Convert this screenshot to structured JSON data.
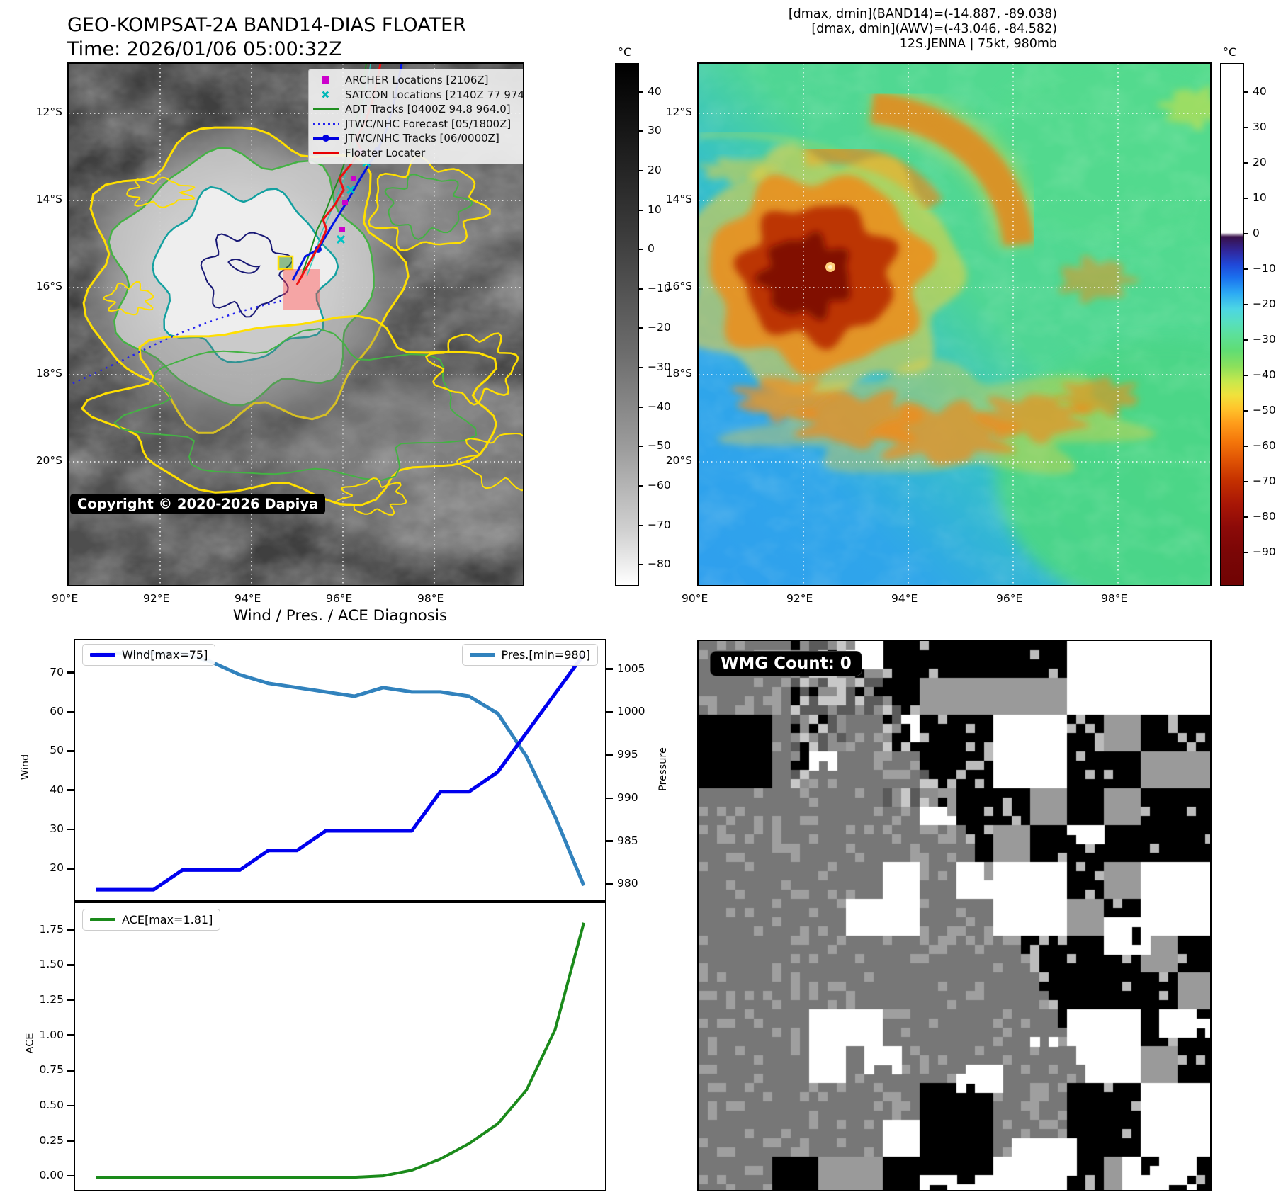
{
  "header": {
    "title": "GEO-KOMPSAT-2A BAND14-DIAS FLOATER",
    "time": "Time: 2026/01/06 05:00:32Z",
    "dminmax_band14": "[dmax, dmin](BAND14)=(-14.887, -89.038)",
    "dminmax_awv": "[dmax, dmin](AWV)=(-43.046, -84.582)",
    "storm_info": "12S.JENNA | 75kt, 980mb"
  },
  "band14_map": {
    "legend": [
      {
        "label": "ARCHER Locations [2106Z]",
        "marker": "magenta-square",
        "color": "#cc00cc"
      },
      {
        "label": "SATCON Locations [2140Z 77 974]",
        "marker": "cyan-x",
        "color": "#00b8b8"
      },
      {
        "label": "ADT Tracks [0400Z 94.8 964.0]",
        "marker": "green-line",
        "color": "#1f8f1f"
      },
      {
        "label": "JTWC/NHC Forecast [05/1800Z]",
        "marker": "blue-dotted-line",
        "color": "#2222ee"
      },
      {
        "label": "JTWC/NHC Tracks [06/0000Z]",
        "marker": "blue-line-dot",
        "color": "#0000e0"
      },
      {
        "label": "Floater Locater",
        "marker": "red-line",
        "color": "#e80000"
      }
    ],
    "copyright": "Copyright © 2020-2026 Dapiya",
    "x_ticks": [
      "90°E",
      "92°E",
      "94°E",
      "96°E",
      "98°E"
    ],
    "y_ticks": [
      "12°S",
      "14°S",
      "16°S",
      "18°S",
      "20°S"
    ],
    "colorbar": {
      "unit": "°C",
      "ticks": [
        40,
        30,
        20,
        10,
        0,
        -10,
        -20,
        -30,
        -40,
        -50,
        -60,
        -70,
        -80
      ]
    }
  },
  "awv_map": {
    "x_ticks": [
      "90°E",
      "92°E",
      "94°E",
      "96°E",
      "98°E"
    ],
    "y_ticks": [
      "12°S",
      "14°S",
      "16°S",
      "18°S",
      "20°S"
    ],
    "colorbar": {
      "unit": "°C",
      "ticks": [
        40,
        30,
        20,
        10,
        0,
        -10,
        -20,
        -30,
        -40,
        -50,
        -60,
        -70,
        -80,
        -90
      ]
    }
  },
  "diagnosis": {
    "title": "Wind / Pres. / ACE Diagnosis",
    "wind_axis_label": "Wind",
    "pressure_axis_label": "Pressure",
    "ace_axis_label": "ACE",
    "legend_wind": "Wind[max=75]",
    "legend_pres": "Pres.[min=980]",
    "legend_ace": "ACE[max=1.81]",
    "wind_ticks": [
      20,
      30,
      40,
      50,
      60,
      70
    ],
    "pressure_ticks": [
      980,
      985,
      990,
      995,
      1000,
      1005
    ],
    "ace_ticks": [
      "0.00",
      "0.25",
      "0.50",
      "0.75",
      "1.00",
      "1.25",
      "1.50",
      "1.75"
    ]
  },
  "wmg": {
    "label": "WMG Count: 0"
  },
  "chart_data": [
    {
      "type": "line",
      "name": "Wind",
      "color": "#0000ee",
      "legend": "Wind[max=75]",
      "x": [
        0,
        1,
        2,
        3,
        4,
        5,
        6,
        7,
        8,
        9,
        10,
        11,
        12,
        13,
        14,
        15,
        16,
        17
      ],
      "values": [
        15,
        15,
        15,
        20,
        20,
        20,
        25,
        25,
        30,
        30,
        30,
        30,
        40,
        40,
        45,
        55,
        65,
        75
      ],
      "ylim": [
        12.3,
        78.6
      ],
      "yticks": [
        20,
        30,
        40,
        50,
        60,
        70
      ],
      "axis": "left"
    },
    {
      "type": "line",
      "name": "Pressure",
      "color": "#3182bd",
      "legend": "Pres.[min=980]",
      "x": [
        0,
        1,
        2,
        3,
        4,
        5,
        6,
        7,
        8,
        9,
        10,
        11,
        12,
        13,
        14,
        15,
        16,
        17
      ],
      "values": [
        1007,
        1007,
        1007,
        1007,
        1006,
        1004.5,
        1003.5,
        1003,
        1002.5,
        1002,
        1003,
        1002.5,
        1002.5,
        1002,
        1000,
        995,
        988,
        980
      ],
      "ylim": [
        978.3,
        1008.5
      ],
      "yticks": [
        980,
        985,
        990,
        995,
        1000,
        1005
      ],
      "axis": "right"
    },
    {
      "type": "line",
      "name": "ACE",
      "color": "#1a8a1a",
      "legend": "ACE[max=1.81]",
      "x": [
        0,
        1,
        2,
        3,
        4,
        5,
        6,
        7,
        8,
        9,
        10,
        11,
        12,
        13,
        14,
        15,
        16,
        17
      ],
      "values": [
        0,
        0,
        0,
        0,
        0,
        0,
        0,
        0,
        0,
        0,
        0.01,
        0.05,
        0.13,
        0.24,
        0.38,
        0.62,
        1.05,
        1.81
      ],
      "ylim": [
        -0.09,
        1.95
      ],
      "yticks": [
        0,
        0.25,
        0.5,
        0.75,
        1,
        1.25,
        1.5,
        1.75
      ],
      "axis": "left"
    }
  ]
}
